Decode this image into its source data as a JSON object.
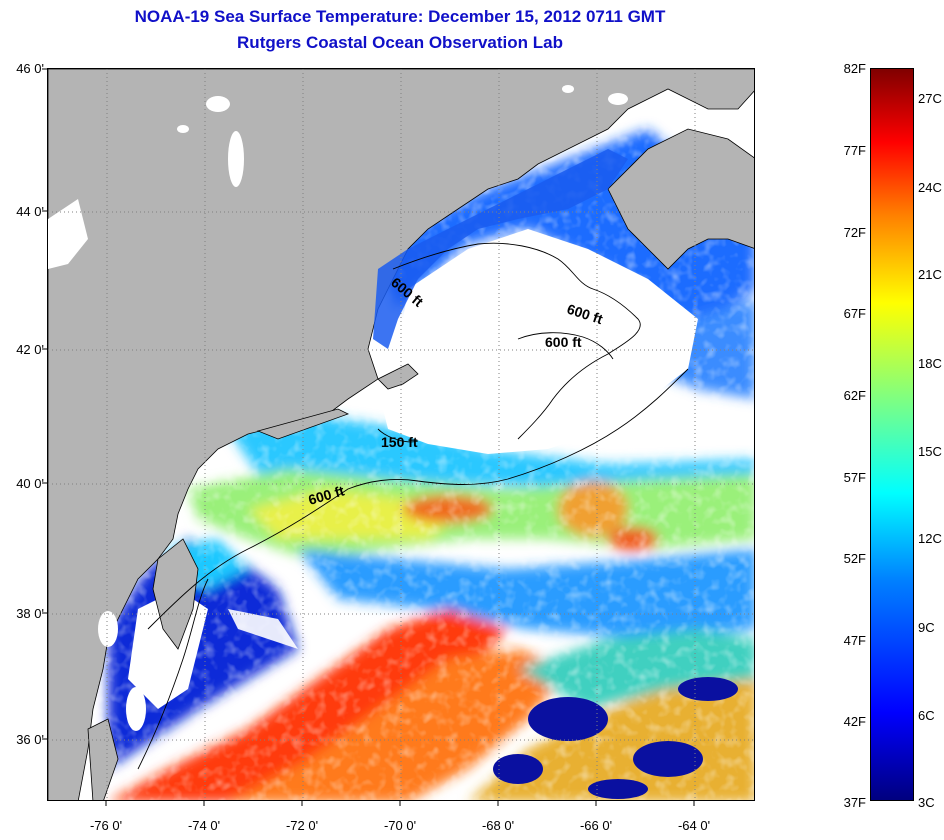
{
  "title": "NOAA-19 Sea Surface Temperature:  December 15, 2012 0711 GMT",
  "subtitle": "Rutgers Coastal Ocean Observation Lab",
  "map": {
    "lat_labels": [
      "46 0'",
      "44 0'",
      "42 0'",
      "40 0'",
      "38 0'",
      "36 0'"
    ],
    "lon_labels": [
      "-76 0'",
      "-74 0'",
      "-72 0'",
      "-70 0'",
      "-68 0'",
      "-66 0'",
      "-64 0'"
    ],
    "lat_range": [
      35,
      46
    ],
    "lon_range": [
      -77,
      -62.5
    ],
    "contour_labels": [
      "600 ft",
      "600 ft",
      "600 ft",
      "150 ft",
      "600 ft"
    ],
    "colors": {
      "land": "#b4b4b4",
      "cloud": "#ffffff"
    }
  },
  "colorbar": {
    "fahrenheit": [
      "82F",
      "77F",
      "72F",
      "67F",
      "62F",
      "57F",
      "52F",
      "47F",
      "42F",
      "37F"
    ],
    "celsius": [
      "27C",
      "24C",
      "21C",
      "18C",
      "15C",
      "12C",
      "9C",
      "6C",
      "3C"
    ]
  }
}
